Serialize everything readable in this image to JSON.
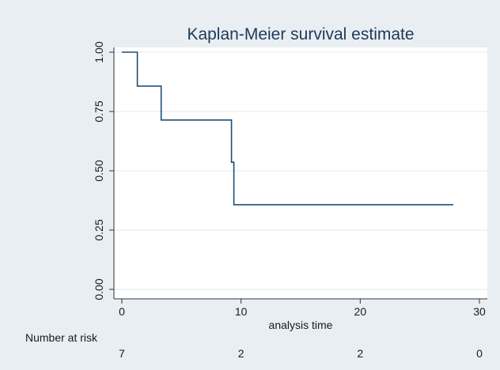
{
  "chart_data": {
    "type": "line",
    "title": "Kaplan-Meier survival estimate",
    "xlabel": "analysis time",
    "ylabel": "",
    "xlim": [
      0,
      30
    ],
    "ylim": [
      0,
      1
    ],
    "x_ticks": [
      "0",
      "10",
      "20",
      "30"
    ],
    "y_ticks": [
      "0.00",
      "0.25",
      "0.50",
      "0.75",
      "1.00"
    ],
    "grid": "horizontal",
    "step_points": [
      {
        "x": 0,
        "y": 1.0
      },
      {
        "x": 1.3,
        "y": 1.0
      },
      {
        "x": 1.3,
        "y": 0.857
      },
      {
        "x": 3.3,
        "y": 0.857
      },
      {
        "x": 3.3,
        "y": 0.714
      },
      {
        "x": 9.2,
        "y": 0.714
      },
      {
        "x": 9.2,
        "y": 0.536
      },
      {
        "x": 9.4,
        "y": 0.536
      },
      {
        "x": 9.4,
        "y": 0.357
      },
      {
        "x": 27.8,
        "y": 0.357
      }
    ],
    "line_color": "#1f4e79",
    "number_at_risk": {
      "label": "Number at risk",
      "values": [
        "7",
        "2",
        "2",
        "0"
      ]
    }
  }
}
